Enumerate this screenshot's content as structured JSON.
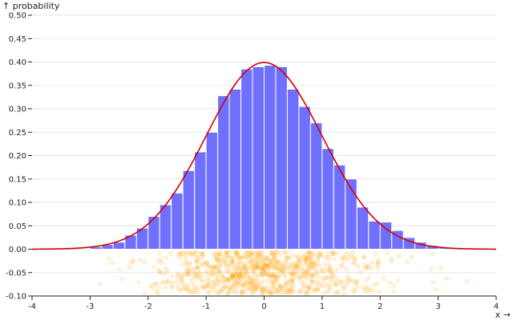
{
  "chart_data": {
    "type": "bar",
    "ylabel": "↑ probability",
    "xlabel": "x →",
    "xlim": [
      -4,
      4
    ],
    "ylim": [
      -0.1,
      0.5
    ],
    "x_ticks": [
      -4,
      -3,
      -2,
      -1,
      0,
      1,
      2,
      3,
      4
    ],
    "y_ticks": [
      0.5,
      0.45,
      0.4,
      0.35,
      0.3,
      0.25,
      0.2,
      0.15,
      0.1,
      0.05,
      0.0,
      -0.05,
      -0.1
    ],
    "y_tick_labels": [
      "0.50",
      "0.45",
      "0.40",
      "0.35",
      "0.30",
      "0.25",
      "0.20",
      "0.15",
      "0.10",
      "0.05",
      "0.00",
      "-0.05",
      "-0.10"
    ],
    "grid": true,
    "histogram": {
      "bin_width": 0.2,
      "bins": [
        {
          "x0": -3.0,
          "value": 0.005
        },
        {
          "x0": -2.8,
          "value": 0.01
        },
        {
          "x0": -2.6,
          "value": 0.015
        },
        {
          "x0": -2.4,
          "value": 0.03
        },
        {
          "x0": -2.2,
          "value": 0.045
        },
        {
          "x0": -2.0,
          "value": 0.07
        },
        {
          "x0": -1.8,
          "value": 0.095
        },
        {
          "x0": -1.6,
          "value": 0.12
        },
        {
          "x0": -1.4,
          "value": 0.168
        },
        {
          "x0": -1.2,
          "value": 0.208
        },
        {
          "x0": -1.0,
          "value": 0.25
        },
        {
          "x0": -0.8,
          "value": 0.328
        },
        {
          "x0": -0.6,
          "value": 0.342
        },
        {
          "x0": -0.4,
          "value": 0.385
        },
        {
          "x0": -0.2,
          "value": 0.39
        },
        {
          "x0": 0.0,
          "value": 0.393
        },
        {
          "x0": 0.2,
          "value": 0.39
        },
        {
          "x0": 0.4,
          "value": 0.342
        },
        {
          "x0": 0.6,
          "value": 0.305
        },
        {
          "x0": 0.8,
          "value": 0.27
        },
        {
          "x0": 1.0,
          "value": 0.215
        },
        {
          "x0": 1.2,
          "value": 0.18
        },
        {
          "x0": 1.4,
          "value": 0.15
        },
        {
          "x0": 1.6,
          "value": 0.09
        },
        {
          "x0": 1.8,
          "value": 0.06
        },
        {
          "x0": 2.0,
          "value": 0.058
        },
        {
          "x0": 2.2,
          "value": 0.04
        },
        {
          "x0": 2.4,
          "value": 0.025
        },
        {
          "x0": 2.6,
          "value": 0.015
        },
        {
          "x0": 2.8,
          "value": 0.008
        },
        {
          "x0": 3.0,
          "value": 0.003
        }
      ]
    },
    "density_curve": {
      "distribution": "normal",
      "mean": 0,
      "sd": 1,
      "x_range": [
        -4,
        4
      ]
    },
    "scatter_strip": {
      "y_range": [
        -0.095,
        -0.005
      ],
      "x_mean": 0,
      "x_sd": 1,
      "n_points": 900,
      "seed": 42
    },
    "colors": {
      "bars": "#7070ff",
      "curve": "#d10000",
      "points": "#ffa200"
    }
  }
}
